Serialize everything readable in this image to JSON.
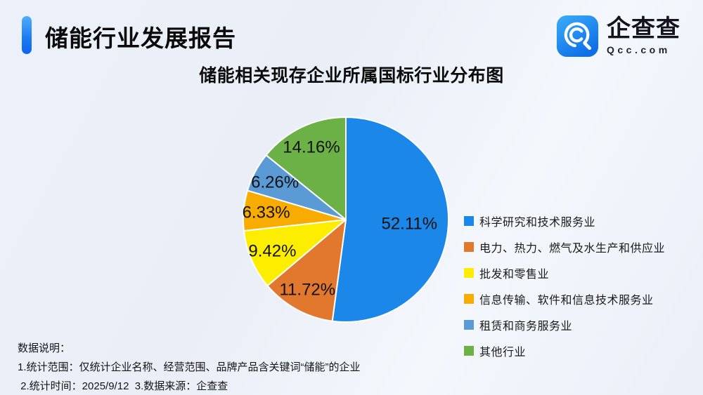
{
  "header": {
    "title": "储能行业发展报告",
    "accent_color": "#1a7bf4"
  },
  "logo": {
    "name": "企查查",
    "domain": "Qcc.com",
    "icon": "qcc-magnifier-icon",
    "icon_color_top": "#2fa9f8",
    "icon_color_bottom": "#1170e8"
  },
  "chart_title": "储能相关现存企业所属国标行业分布图",
  "chart_data": {
    "type": "pie",
    "title": "储能相关现存企业所属国标行业分布图",
    "start_angle": "12-o-clock",
    "direction": "clockwise",
    "legend_position": "right",
    "series": [
      {
        "label": "科学研究和技术服务业",
        "value": 52.11,
        "display": "52.11%",
        "color": "#1b87e8"
      },
      {
        "label": "电力、热力、燃气及水生产和供应业",
        "value": 11.72,
        "display": "11.72%",
        "color": "#e2772e"
      },
      {
        "label": "批发和零售业",
        "value": 9.42,
        "display": "9.42%",
        "color": "#fdee00"
      },
      {
        "label": "信息传输、软件和信息技术服务业",
        "value": 6.33,
        "display": "6.33%",
        "color": "#f8ac00"
      },
      {
        "label": "租赁和商务服务业",
        "value": 6.26,
        "display": "6.26%",
        "color": "#5b9bd5"
      },
      {
        "label": "其他行业",
        "value": 14.16,
        "display": "14.16%",
        "color": "#6cb145"
      }
    ]
  },
  "notes": {
    "heading": "数据说明：",
    "line1": "1.统计范围：仅统计企业名称、经营范围、品牌产品含关键词“储能”的企业",
    "line2": " 2.统计时间：2025/9/12  3.数据来源：企查查"
  }
}
